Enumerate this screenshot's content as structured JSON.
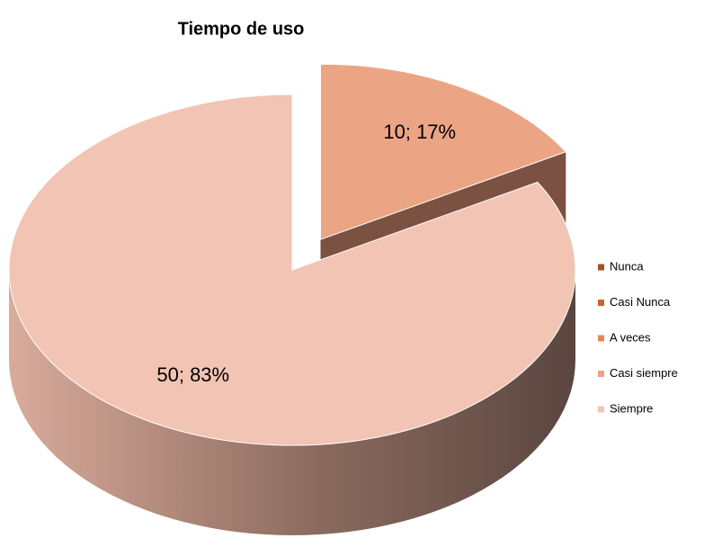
{
  "chart_data": {
    "type": "pie3d",
    "title": "Tiempo de uso",
    "categories": [
      "Nunca",
      "Casi Nunca",
      "A veces",
      "Casi siempre",
      "Siempre"
    ],
    "values": [
      0,
      0,
      0,
      10,
      50
    ],
    "value_labels": [
      null,
      null,
      null,
      "10; 17%",
      "50; 83%"
    ],
    "colors": [
      "#a0522d",
      "#c4682f",
      "#e58a4e",
      "#eba584",
      "#f1c4b3"
    ],
    "legend": "right"
  }
}
